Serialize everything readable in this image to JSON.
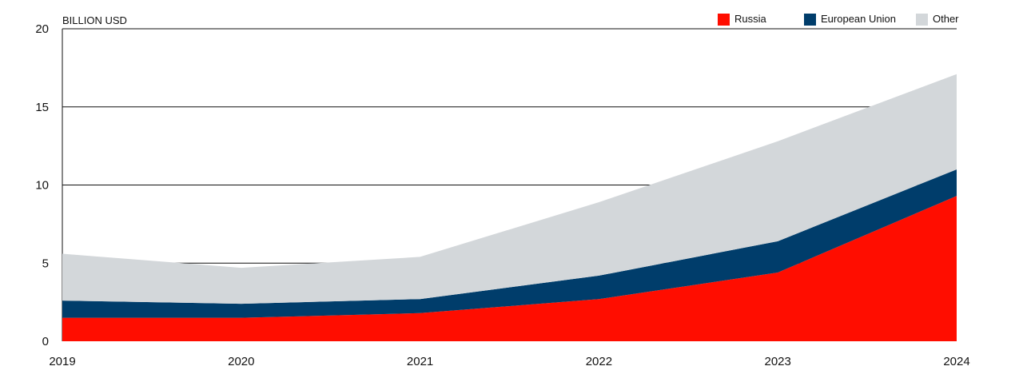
{
  "chart_data": {
    "type": "area",
    "stacked": true,
    "title": "",
    "xlabel": "",
    "ylabel": "BILLION USD",
    "ylim": [
      0,
      20
    ],
    "yticks": [
      0,
      5,
      10,
      15,
      20
    ],
    "grid": true,
    "legend_position": "top-right",
    "x": [
      "2019",
      "2020",
      "2021",
      "2022",
      "2023",
      "2024"
    ],
    "series": [
      {
        "name": "Russia",
        "color": "#ff0d00",
        "values": [
          1.5,
          1.5,
          1.8,
          2.7,
          4.4,
          9.3
        ]
      },
      {
        "name": "European Union",
        "color": "#003d6b",
        "values": [
          1.1,
          0.9,
          0.9,
          1.5,
          2.0,
          1.7
        ]
      },
      {
        "name": "Other",
        "color": "#d3d7da",
        "values": [
          3.0,
          2.3,
          2.7,
          4.7,
          6.4,
          6.1
        ]
      }
    ]
  }
}
